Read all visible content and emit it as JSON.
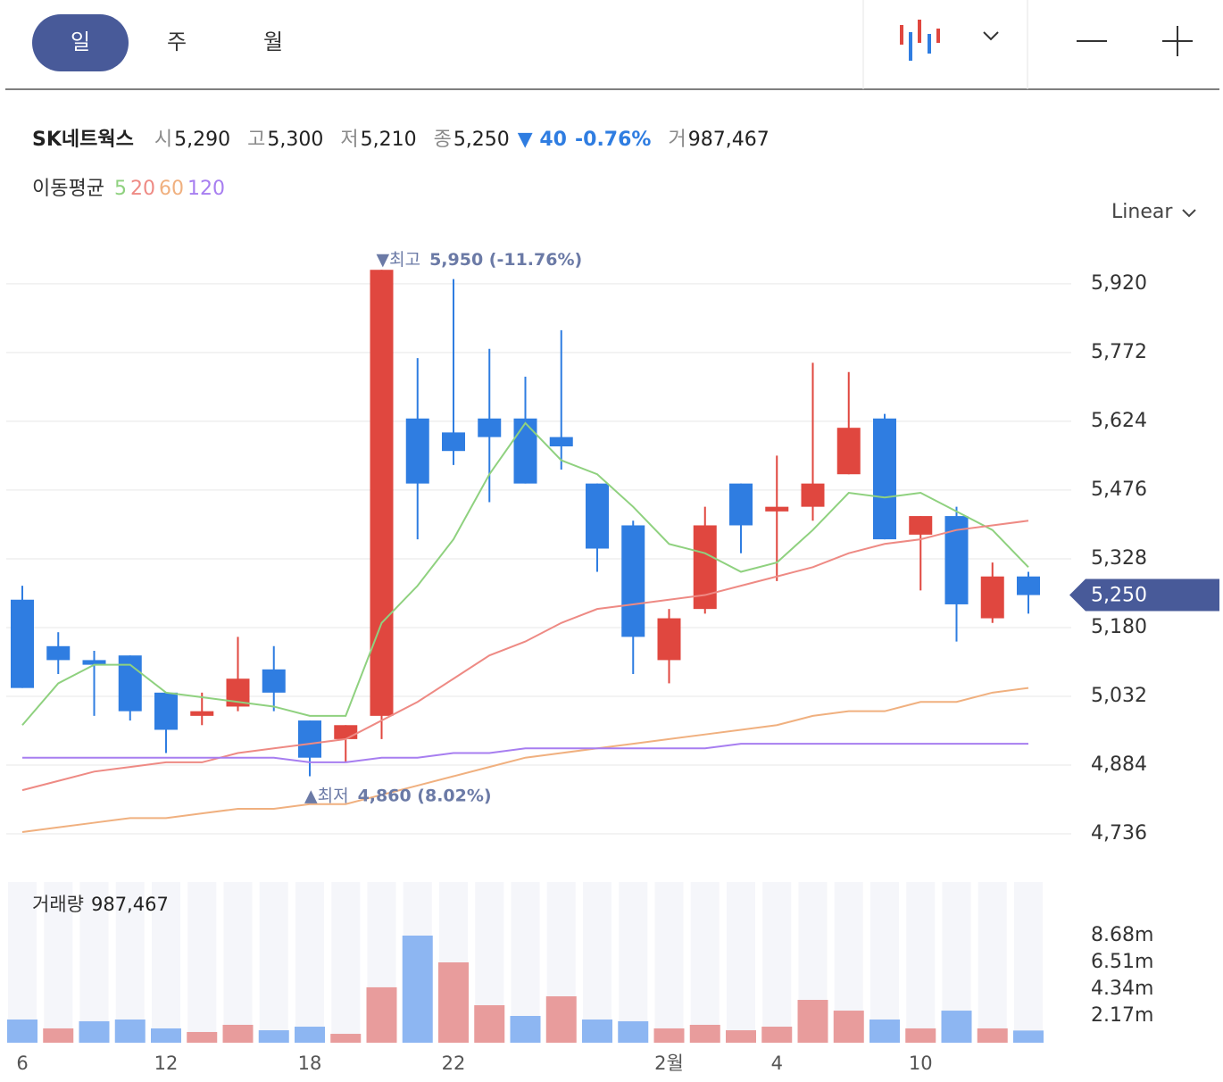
{
  "tabs": [
    {
      "label": "일",
      "active": true
    },
    {
      "label": "주",
      "active": false
    },
    {
      "label": "월",
      "active": false
    }
  ],
  "info": {
    "name": "SK네트웍스",
    "fields": [
      {
        "label": "시",
        "value": "5,290"
      },
      {
        "label": "고",
        "value": "5,300"
      },
      {
        "label": "저",
        "value": "5,210"
      },
      {
        "label": "종",
        "value": "5,250"
      }
    ],
    "change": "▼ 40",
    "change_pct": "-0.76%",
    "volume_label": "거",
    "volume": "987,467"
  },
  "ma_legend_title": "이동평균",
  "scale": "Linear",
  "chart_data": [
    {
      "type": "candlestick",
      "categories": [
        "6",
        null,
        null,
        null,
        "12",
        null,
        null,
        null,
        "18",
        null,
        null,
        null,
        "22",
        null,
        null,
        null,
        null,
        null,
        "2월",
        null,
        null,
        "4",
        null,
        null,
        null,
        "10",
        null,
        null,
        null
      ],
      "open": [
        5240,
        5140,
        5110,
        5120,
        5040,
        4990,
        5010,
        5090,
        4980,
        4940,
        4990,
        5630,
        5600,
        5630,
        5630,
        5590,
        5490,
        5400,
        5110,
        5220,
        5490,
        5430,
        5440,
        5510,
        5630,
        5380,
        5420,
        5200,
        5290
      ],
      "high": [
        5270,
        5170,
        5130,
        5120,
        5040,
        5040,
        5160,
        5140,
        4980,
        4970,
        5950,
        5760,
        5930,
        5780,
        5720,
        5820,
        5490,
        5410,
        5220,
        5440,
        5490,
        5550,
        5750,
        5730,
        5640,
        5420,
        5440,
        5320,
        5300
      ],
      "low": [
        5050,
        5080,
        4990,
        4980,
        4910,
        4970,
        5000,
        5000,
        4860,
        4890,
        4940,
        5370,
        5530,
        5450,
        5490,
        5520,
        5300,
        5080,
        5060,
        5210,
        5340,
        5280,
        5410,
        5510,
        5370,
        5260,
        5150,
        5190,
        5210
      ],
      "close": [
        5050,
        5110,
        5100,
        5000,
        4960,
        5000,
        5070,
        5040,
        4900,
        4970,
        5950,
        5490,
        5560,
        5590,
        5490,
        5570,
        5350,
        5160,
        5200,
        5400,
        5400,
        5440,
        5490,
        5610,
        5370,
        5420,
        5230,
        5290,
        5250
      ],
      "up_color": "#e0473f",
      "down_color": "#2f7de1",
      "ylim": [
        4690,
        6010
      ],
      "yticks": [
        {
          "value": 5920,
          "label": "5,920"
        },
        {
          "value": 5772,
          "label": "5,772"
        },
        {
          "value": 5624,
          "label": "5,624"
        },
        {
          "value": 5476,
          "label": "5,476"
        },
        {
          "value": 5328,
          "label": "5,328"
        },
        {
          "value": 5180,
          "label": "5,180"
        },
        {
          "value": 5032,
          "label": "5,032"
        },
        {
          "value": 4884,
          "label": "4,884"
        },
        {
          "value": 4736,
          "label": "4,736"
        }
      ],
      "grid": true,
      "moving_averages": [
        {
          "name": "5",
          "color": "#8fd17f",
          "values": [
            4970,
            5060,
            5100,
            5100,
            5040,
            5030,
            5020,
            5010,
            4990,
            4990,
            5190,
            5270,
            5370,
            5510,
            5620,
            5540,
            5510,
            5440,
            5360,
            5340,
            5300,
            5320,
            5390,
            5470,
            5460,
            5470,
            5430,
            5390,
            5310
          ]
        },
        {
          "name": "20",
          "color": "#ee8a84",
          "values": [
            4830,
            4850,
            4870,
            4880,
            4890,
            4890,
            4910,
            4920,
            4930,
            4940,
            4980,
            5020,
            5070,
            5120,
            5150,
            5190,
            5220,
            5230,
            5240,
            5250,
            5270,
            5290,
            5310,
            5340,
            5360,
            5370,
            5390,
            5400,
            5410
          ]
        },
        {
          "name": "60",
          "color": "#f0b07f",
          "values": [
            4740,
            4750,
            4760,
            4770,
            4770,
            4780,
            4790,
            4790,
            4800,
            4800,
            4820,
            4840,
            4860,
            4880,
            4900,
            4910,
            4920,
            4930,
            4940,
            4950,
            4960,
            4970,
            4990,
            5000,
            5000,
            5020,
            5020,
            5040,
            5050
          ]
        },
        {
          "name": "120",
          "color": "#a77ef0",
          "values": [
            4900,
            4900,
            4900,
            4900,
            4900,
            4900,
            4900,
            4900,
            4890,
            4890,
            4900,
            4900,
            4910,
            4910,
            4920,
            4920,
            4920,
            4920,
            4920,
            4920,
            4930,
            4930,
            4930,
            4930,
            4930,
            4930,
            4930,
            4930,
            4930
          ]
        }
      ],
      "annotations": [
        {
          "text": "▼최고",
          "label": "5,950 (-11.76%)",
          "value": 5950,
          "kind": "high"
        },
        {
          "text": "▲최저",
          "label": "4,860 (8.02%)",
          "value": 4860,
          "kind": "low"
        }
      ],
      "current": {
        "value": 5250,
        "label": "5,250"
      }
    },
    {
      "type": "bar",
      "title": "거래량",
      "current_label": "987,467",
      "values": [
        1.88,
        1.16,
        1.74,
        1.88,
        1.16,
        0.87,
        1.45,
        1.01,
        1.3,
        0.72,
        4.49,
        8.68,
        6.51,
        3.04,
        2.17,
        3.76,
        1.88,
        1.74,
        1.16,
        1.45,
        1.01,
        1.3,
        3.47,
        2.6,
        1.88,
        1.16,
        2.6,
        1.16,
        0.987467
      ],
      "colors": [
        "#8db6f2",
        "#e89c9c",
        "#8db6f2",
        "#8db6f2",
        "#8db6f2",
        "#e89c9c",
        "#e89c9c",
        "#8db6f2",
        "#8db6f2",
        "#e89c9c",
        "#e89c9c",
        "#8db6f2",
        "#e89c9c",
        "#e89c9c",
        "#8db6f2",
        "#e89c9c",
        "#8db6f2",
        "#8db6f2",
        "#e89c9c",
        "#e89c9c",
        "#e89c9c",
        "#e89c9c",
        "#e89c9c",
        "#e89c9c",
        "#8db6f2",
        "#e89c9c",
        "#8db6f2",
        "#e89c9c",
        "#8db6f2"
      ],
      "ylim": [
        0,
        13.02
      ],
      "yticks": [
        {
          "value": 8.68,
          "label": "8.68m"
        },
        {
          "value": 6.51,
          "label": "6.51m"
        },
        {
          "value": 4.34,
          "label": "4.34m"
        },
        {
          "value": 2.17,
          "label": "2.17m"
        }
      ]
    }
  ]
}
